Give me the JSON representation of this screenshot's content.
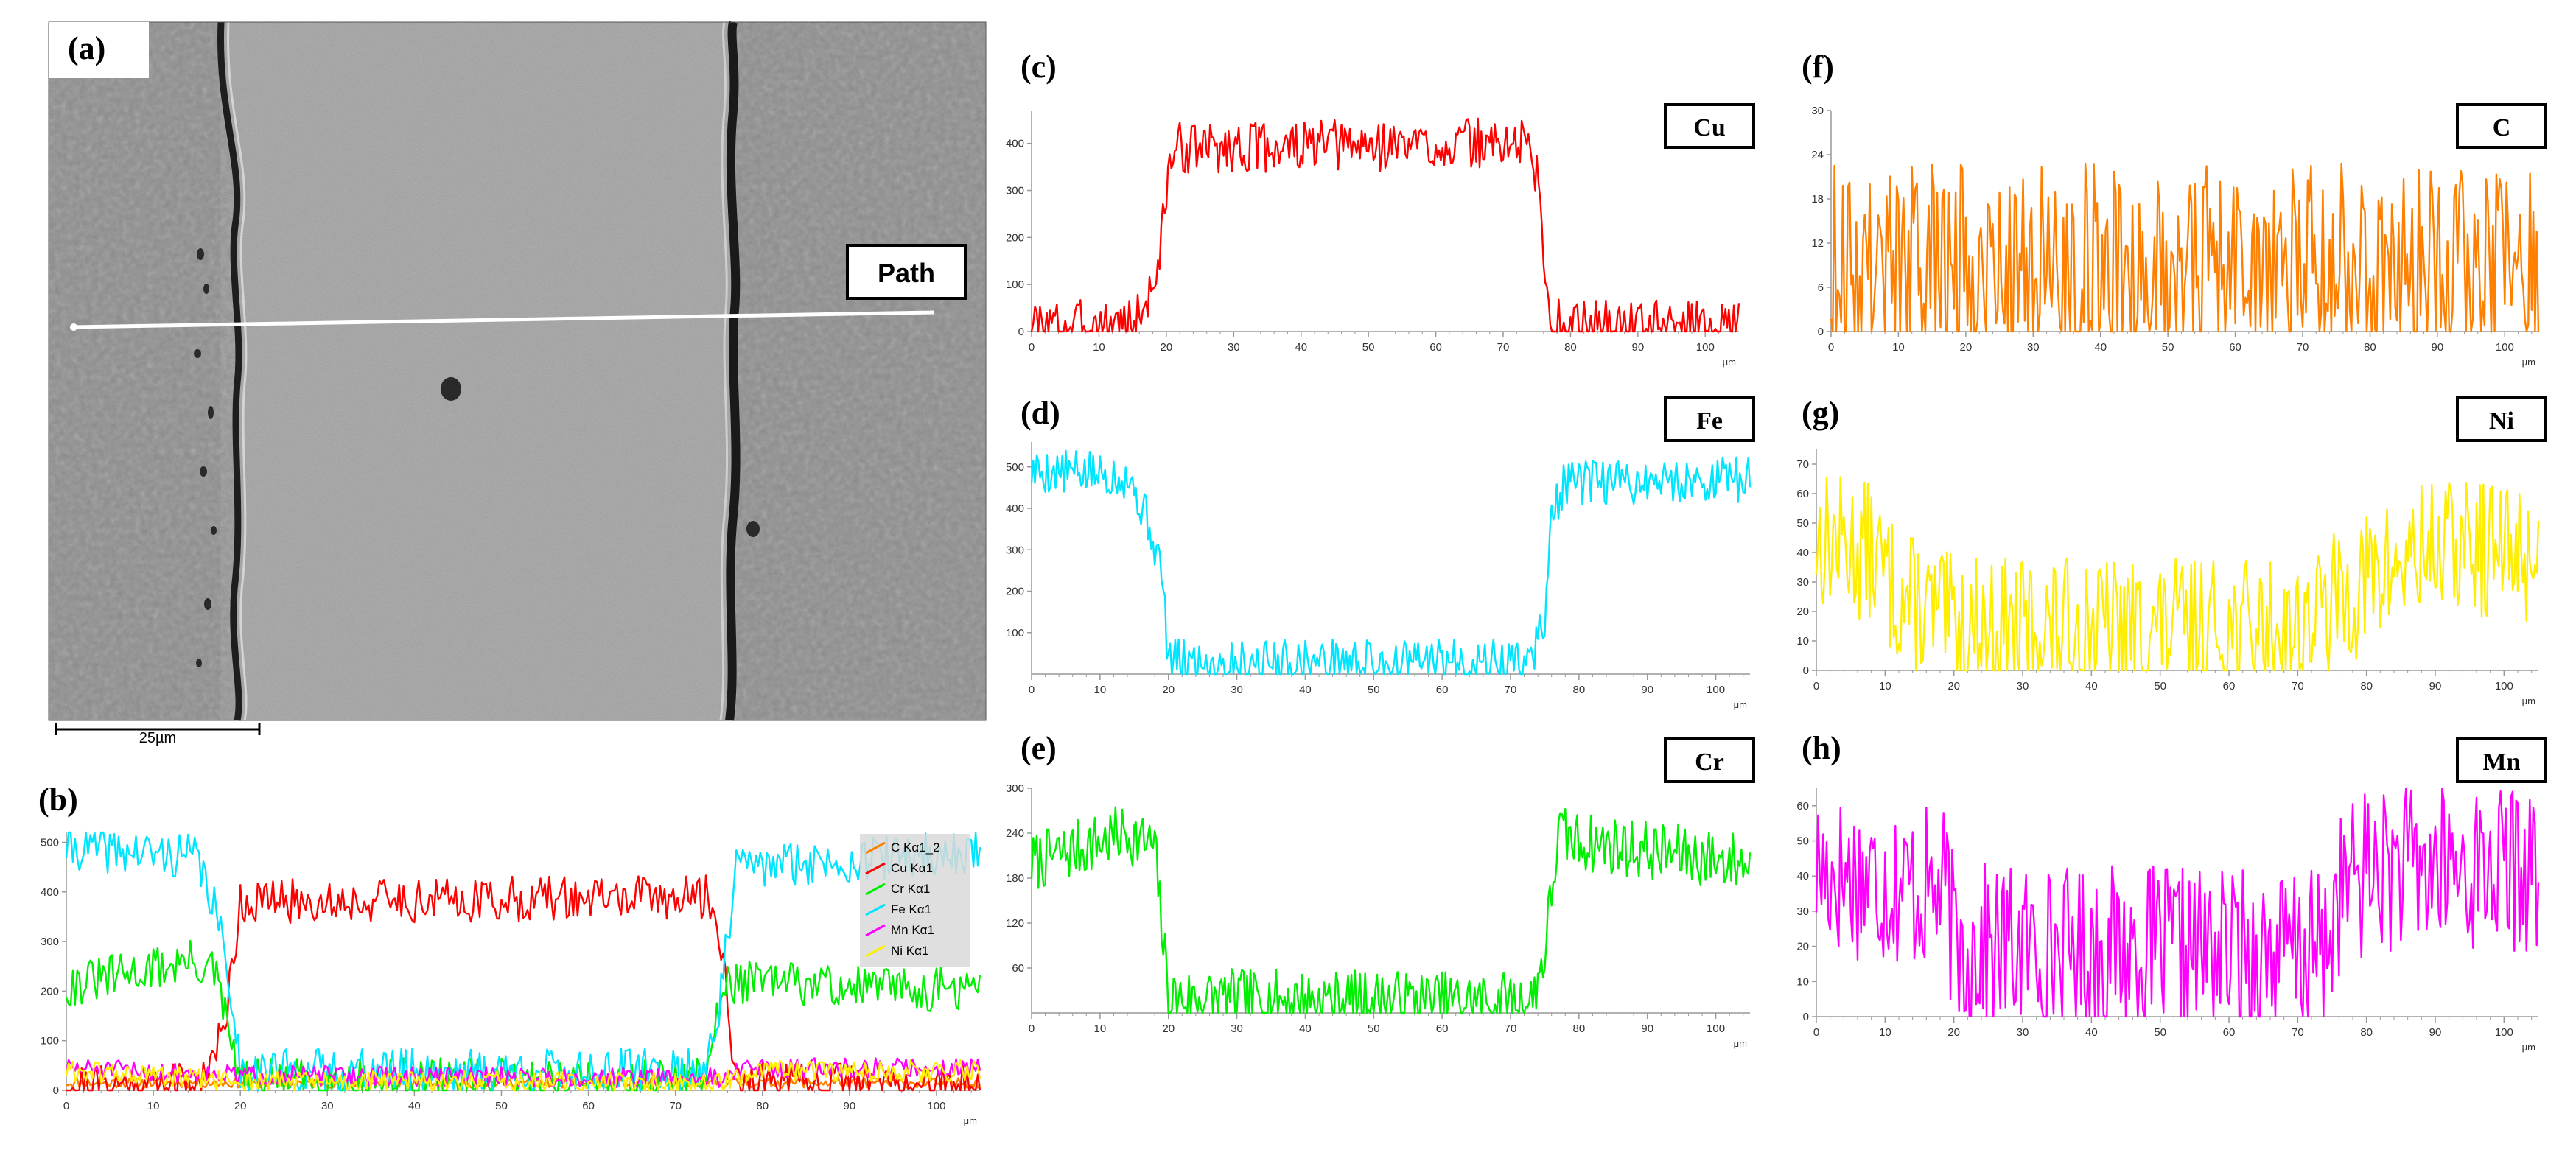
{
  "sem": {
    "panel_label": "(a)",
    "path_label": "Path",
    "scale_bar_label": "25µm",
    "interlayer_extent_um": [
      20,
      75
    ]
  },
  "chart_data": [
    {
      "id": "b",
      "panel_label": "(b)",
      "type": "line",
      "xlim": [
        0,
        105
      ],
      "xticks": [
        0,
        10,
        20,
        30,
        40,
        50,
        60,
        70,
        80,
        90,
        100
      ],
      "ylim": [
        0,
        520
      ],
      "yticks": [
        0,
        100,
        200,
        300,
        400,
        500
      ],
      "unit": "μm",
      "legend": {
        "placement": "top-right",
        "entries": [
          {
            "label": "C Kα1_2",
            "color": "#ff8000"
          },
          {
            "label": "Cu Kα1",
            "color": "#ff0000"
          },
          {
            "label": "Cr Kα1",
            "color": "#00ee00"
          },
          {
            "label": "Fe Kα1",
            "color": "#00e5ff"
          },
          {
            "label": "Mn Kα1",
            "color": "#ff00ff"
          },
          {
            "label": "Ni Kα1",
            "color": "#ffee00"
          }
        ]
      },
      "series": [
        {
          "name": "C Kα1_2",
          "color": "#ff8000",
          "profile": [
            [
              0,
              15
            ],
            [
              105,
              15
            ]
          ],
          "noise": 10,
          "seed": 11
        },
        {
          "name": "Cu Kα1",
          "color": "#ff0000",
          "profile": [
            [
              0,
              10
            ],
            [
              15,
              12
            ],
            [
              18,
              110
            ],
            [
              20,
              380
            ],
            [
              74,
              390
            ],
            [
              76,
              200
            ],
            [
              77,
              10
            ],
            [
              105,
              10
            ]
          ],
          "noise": 45,
          "seed": 21
        },
        {
          "name": "Cr Kα1",
          "color": "#00ee00",
          "profile": [
            [
              0,
              210
            ],
            [
              14,
              260
            ],
            [
              17,
              240
            ],
            [
              20,
              20
            ],
            [
              73,
              20
            ],
            [
              76,
              220
            ],
            [
              105,
              200
            ]
          ],
          "noise": 45,
          "seed": 31
        },
        {
          "name": "Fe Kα1",
          "color": "#00e5ff",
          "profile": [
            [
              0,
              490
            ],
            [
              15,
              470
            ],
            [
              17,
              370
            ],
            [
              19,
              200
            ],
            [
              20,
              40
            ],
            [
              73,
              40
            ],
            [
              75,
              160
            ],
            [
              77,
              450
            ],
            [
              105,
              480
            ]
          ],
          "noise": 45,
          "seed": 41
        },
        {
          "name": "Mn Kα1",
          "color": "#ff00ff",
          "profile": [
            [
              0,
              45
            ],
            [
              20,
              30
            ],
            [
              75,
              25
            ],
            [
              78,
              45
            ],
            [
              105,
              45
            ]
          ],
          "noise": 20,
          "seed": 51
        },
        {
          "name": "Ni Kα1",
          "color": "#ffee00",
          "profile": [
            [
              0,
              40
            ],
            [
              20,
              18
            ],
            [
              75,
              15
            ],
            [
              80,
              38
            ],
            [
              105,
              40
            ]
          ],
          "noise": 22,
          "seed": 61
        }
      ]
    },
    {
      "id": "c",
      "panel_label": "(c)",
      "type": "line",
      "element": "Cu",
      "xlim": [
        0,
        105
      ],
      "xticks": [
        0,
        10,
        20,
        30,
        40,
        50,
        60,
        70,
        80,
        90,
        100
      ],
      "ylim": [
        0,
        470
      ],
      "yticks": [
        0,
        100,
        200,
        300,
        400
      ],
      "unit": "μm",
      "series": [
        {
          "name": "Cu",
          "color": "#ff0000",
          "profile": [
            [
              0,
              12
            ],
            [
              15,
              15
            ],
            [
              17,
              60
            ],
            [
              19,
              150
            ],
            [
              20,
              300
            ],
            [
              21,
              390
            ],
            [
              74,
              400
            ],
            [
              75,
              330
            ],
            [
              77,
              15
            ],
            [
              105,
              8
            ]
          ],
          "noise": 55,
          "seed": 3
        }
      ]
    },
    {
      "id": "d",
      "panel_label": "(d)",
      "type": "line",
      "element": "Fe",
      "xlim": [
        0,
        105
      ],
      "xticks": [
        0,
        10,
        20,
        30,
        40,
        50,
        60,
        70,
        80,
        90,
        100
      ],
      "ylim": [
        0,
        560
      ],
      "yticks": [
        100,
        200,
        300,
        400,
        500
      ],
      "unit": "μm",
      "series": [
        {
          "name": "Fe",
          "color": "#00e5ff",
          "profile": [
            [
              0,
              490
            ],
            [
              14,
              480
            ],
            [
              17,
              370
            ],
            [
              19,
              250
            ],
            [
              20,
              30
            ],
            [
              73,
              30
            ],
            [
              75,
              140
            ],
            [
              76,
              380
            ],
            [
              78,
              460
            ],
            [
              105,
              470
            ]
          ],
          "noise": 55,
          "seed": 5
        }
      ]
    },
    {
      "id": "e",
      "panel_label": "(e)",
      "type": "line",
      "element": "Cr",
      "xlim": [
        0,
        105
      ],
      "xticks": [
        0,
        10,
        20,
        30,
        40,
        50,
        60,
        70,
        80,
        90,
        100
      ],
      "ylim": [
        0,
        300
      ],
      "yticks": [
        60,
        120,
        180,
        240,
        300
      ],
      "unit": "μm",
      "series": [
        {
          "name": "Cr",
          "color": "#00ee00",
          "profile": [
            [
              0,
              200
            ],
            [
              14,
              240
            ],
            [
              18,
              220
            ],
            [
              20,
              20
            ],
            [
              73,
              15
            ],
            [
              75,
              80
            ],
            [
              77,
              240
            ],
            [
              79,
              230
            ],
            [
              105,
              200
            ]
          ],
          "noise": 40,
          "seed": 7
        }
      ]
    },
    {
      "id": "f",
      "panel_label": "(f)",
      "type": "line",
      "element": "C",
      "xlim": [
        0,
        105
      ],
      "xticks": [
        0,
        10,
        20,
        30,
        40,
        50,
        60,
        70,
        80,
        90,
        100
      ],
      "ylim": [
        0,
        30
      ],
      "yticks": [
        0,
        6,
        12,
        18,
        24,
        30
      ],
      "unit": "μm",
      "series": [
        {
          "name": "C",
          "color": "#ff8000",
          "profile": [
            [
              0,
              9
            ],
            [
              105,
              9
            ]
          ],
          "noise": 14,
          "seed": 9
        }
      ]
    },
    {
      "id": "g",
      "panel_label": "(g)",
      "type": "line",
      "element": "Ni",
      "xlim": [
        0,
        105
      ],
      "xticks": [
        0,
        10,
        20,
        30,
        40,
        50,
        60,
        70,
        80,
        90,
        100
      ],
      "ylim": [
        0,
        75
      ],
      "yticks": [
        0,
        10,
        20,
        30,
        40,
        50,
        60,
        70
      ],
      "unit": "μm",
      "series": [
        {
          "name": "Ni",
          "color": "#ffee00",
          "profile": [
            [
              0,
              45
            ],
            [
              8,
              40
            ],
            [
              12,
              25
            ],
            [
              20,
              15
            ],
            [
              70,
              14
            ],
            [
              80,
              30
            ],
            [
              90,
              42
            ],
            [
              105,
              40
            ]
          ],
          "noise": 24,
          "seed": 13
        }
      ]
    },
    {
      "id": "h",
      "panel_label": "(h)",
      "type": "line",
      "element": "Mn",
      "xlim": [
        0,
        105
      ],
      "xticks": [
        0,
        10,
        20,
        30,
        40,
        50,
        60,
        70,
        80,
        90,
        100
      ],
      "ylim": [
        0,
        65
      ],
      "yticks": [
        0,
        10,
        20,
        30,
        40,
        50,
        60
      ],
      "unit": "μm",
      "series": [
        {
          "name": "Mn",
          "color": "#ff00ff",
          "profile": [
            [
              0,
              42
            ],
            [
              19,
              35
            ],
            [
              20,
              20
            ],
            [
              74,
              18
            ],
            [
              76,
              35
            ],
            [
              80,
              42
            ],
            [
              105,
              42
            ]
          ],
          "noise": 24,
          "seed": 17
        }
      ]
    }
  ]
}
